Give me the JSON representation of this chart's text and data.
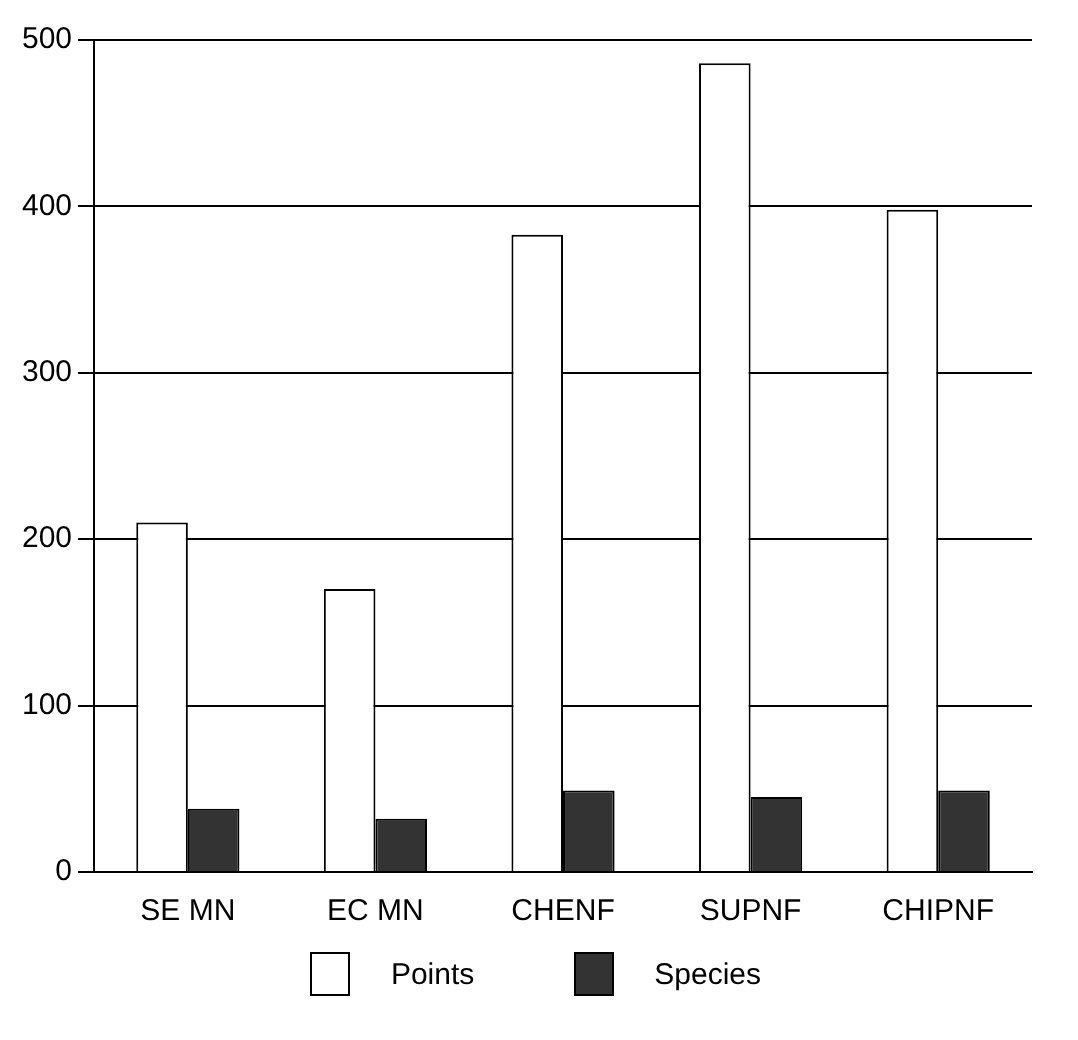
{
  "chart_data": {
    "type": "bar",
    "categories": [
      "SE MN",
      "EC MN",
      "CHENF",
      "SUPNF",
      "CHIPNF"
    ],
    "series": [
      {
        "name": "Points",
        "color": "#ffffff",
        "values": [
          210,
          170,
          383,
          486,
          398
        ]
      },
      {
        "name": "Species",
        "color": "#333333",
        "values": [
          38,
          32,
          49,
          45,
          49
        ]
      }
    ],
    "ylim": [
      0,
      500
    ],
    "yticks": [
      0,
      100,
      200,
      300,
      400,
      500
    ],
    "grid": "y",
    "legend": "bottom"
  }
}
